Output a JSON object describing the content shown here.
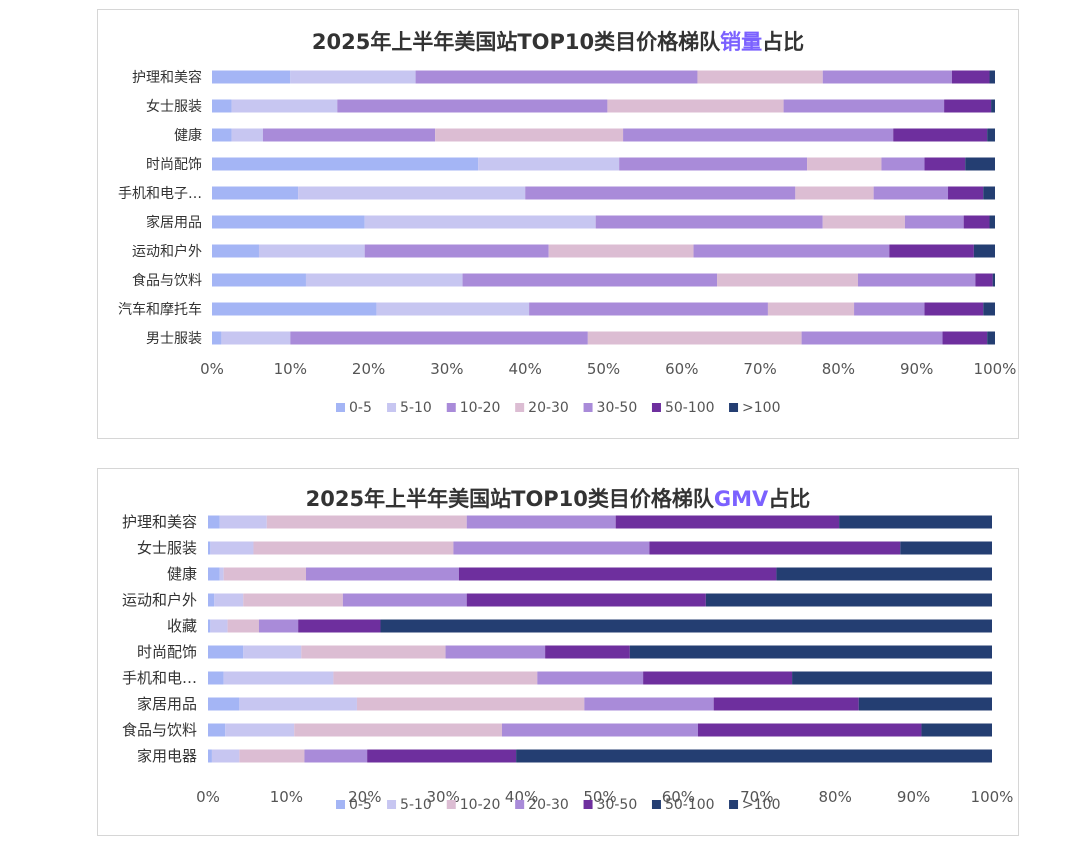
{
  "chart_data": [
    {
      "type": "bar",
      "orientation": "horizontal",
      "stacked": "100%",
      "title": {
        "prefix": "2025年上半年美国站TOP10类目价格梯队",
        "highlight": "销量",
        "suffix": "占比"
      },
      "highlight_color": "#7b61ff",
      "categories": [
        "护理和美容",
        "女士服装",
        "健康",
        "时尚配饰",
        "手机和电子…",
        "家居用品",
        "运动和户外",
        "食品与饮料",
        "汽车和摩托车",
        "男士服装"
      ],
      "series": [
        {
          "name": "0-5",
          "color": "#a4b5f5",
          "values": [
            10,
            2.5,
            2.5,
            34,
            11,
            19.5,
            6,
            12,
            21,
            1.2
          ]
        },
        {
          "name": "5-10",
          "color": "#c7c6f1",
          "values": [
            16,
            13.5,
            4,
            18,
            29,
            29.5,
            13.5,
            20,
            19.5,
            8.8
          ]
        },
        {
          "name": "10-20",
          "color": "#a98bd9",
          "values": [
            36,
            34.5,
            22,
            24,
            34.5,
            29,
            23.5,
            32.5,
            30.5,
            38
          ]
        },
        {
          "name": "20-30",
          "color": "#dcbdd3",
          "values": [
            16,
            22.5,
            24,
            9.5,
            10,
            10.5,
            18.5,
            18,
            11,
            27.3
          ]
        },
        {
          "name": "30-50",
          "color": "#a98bd9",
          "values": [
            16.5,
            20.5,
            34.5,
            5.5,
            9.5,
            7.5,
            25,
            15,
            9,
            18
          ]
        },
        {
          "name": "50-100",
          "color": "#6e2f9e",
          "values": [
            4.8,
            6,
            12,
            5.2,
            4.5,
            3.3,
            10.8,
            2.2,
            7.5,
            5.7
          ]
        },
        {
          "name": ">100",
          "color": "#243e72",
          "values": [
            0.7,
            0.5,
            1,
            3.8,
            1.5,
            0.7,
            2.7,
            0.3,
            1.5,
            1
          ]
        }
      ],
      "xlim": [
        0,
        100
      ],
      "xticks": [
        "0%",
        "10%",
        "20%",
        "30%",
        "40%",
        "50%",
        "60%",
        "70%",
        "80%",
        "90%",
        "100%"
      ],
      "legend_position": "bottom",
      "grid": false
    },
    {
      "type": "bar",
      "orientation": "horizontal",
      "stacked": "100%",
      "title": {
        "prefix": "2025年上半年美国站TOP10类目价格梯队",
        "highlight": "GMV",
        "suffix": "占比"
      },
      "highlight_color": "#7b61ff",
      "categories": [
        "护理和美容",
        "女士服装",
        "健康",
        "运动和户外",
        "收藏",
        "时尚配饰",
        "手机和电…",
        "家居用品",
        "食品与饮料",
        "家用电器"
      ],
      "series": [
        {
          "name": "0-5",
          "color": "#a4b5f5",
          "values": [
            1.5,
            0.3,
            1.5,
            0.8,
            0.3,
            4.5,
            2,
            4,
            2.2,
            0.5
          ]
        },
        {
          "name": "5-10",
          "color": "#c7c6f1",
          "values": [
            6,
            5.5,
            0.5,
            3.7,
            2.2,
            7.4,
            14,
            15,
            8.8,
            3.5
          ]
        },
        {
          "name": "10-20",
          "color": "#dcbdd3",
          "values": [
            25.5,
            25.5,
            10.5,
            12.7,
            4,
            18.4,
            26,
            29,
            26.5,
            8.3
          ]
        },
        {
          "name": "20-30",
          "color": "#a98bd9",
          "values": [
            19,
            25,
            19.5,
            15.8,
            5,
            12.7,
            13.5,
            16.5,
            25,
            8
          ]
        },
        {
          "name": "30-50",
          "color": "#6e2f9e",
          "values": [
            28.5,
            32,
            40.5,
            30.5,
            10.5,
            10.8,
            19,
            18.5,
            28.5,
            19
          ]
        },
        {
          "name": "50-100",
          "color": "#243e72",
          "values": [
            19.5,
            11.7,
            27.5,
            36.5,
            78,
            46.2,
            25.5,
            17,
            9,
            60.7
          ]
        },
        {
          "name": ">100",
          "color": "#243e72",
          "values": [
            0,
            0,
            0,
            0,
            0,
            0,
            0,
            0,
            0,
            0
          ]
        }
      ],
      "xlim": [
        0,
        100
      ],
      "xticks": [
        "0%",
        "10%",
        "20%",
        "30%",
        "40%",
        "50%",
        "60%",
        "70%",
        "80%",
        "90%",
        "100%"
      ],
      "legend_position": "bottom",
      "grid": false
    }
  ]
}
